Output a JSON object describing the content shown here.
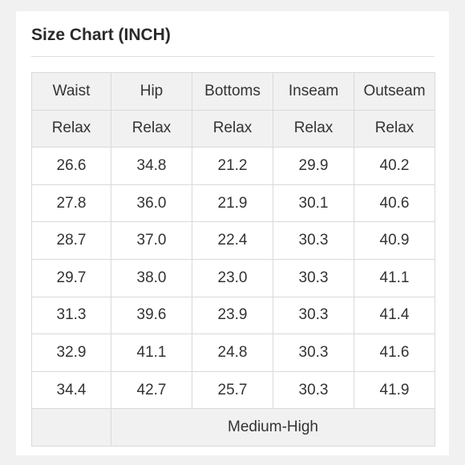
{
  "title": "Size Chart (INCH)",
  "table": {
    "headers": [
      "Waist",
      "Hip",
      "Bottoms",
      "Inseam",
      "Outseam"
    ],
    "subheaders": [
      "Relax",
      "Relax",
      "Relax",
      "Relax",
      "Relax"
    ],
    "rows": [
      [
        "26.6",
        "34.8",
        "21.2",
        "29.9",
        "40.2"
      ],
      [
        "27.8",
        "36.0",
        "21.9",
        "30.1",
        "40.6"
      ],
      [
        "28.7",
        "37.0",
        "22.4",
        "30.3",
        "40.9"
      ],
      [
        "29.7",
        "38.0",
        "23.0",
        "30.3",
        "41.1"
      ],
      [
        "31.3",
        "39.6",
        "23.9",
        "30.3",
        "41.4"
      ],
      [
        "32.9",
        "41.1",
        "24.8",
        "30.3",
        "41.6"
      ],
      [
        "34.4",
        "42.7",
        "25.7",
        "30.3",
        "41.9"
      ]
    ],
    "footer": {
      "first": "",
      "rise": "Medium-High"
    }
  }
}
